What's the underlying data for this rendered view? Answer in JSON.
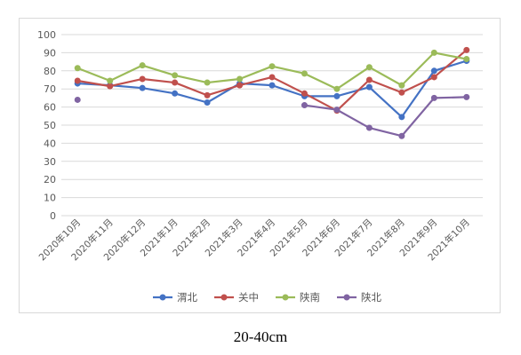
{
  "caption": "20-40cm",
  "chart_data": {
    "type": "line",
    "title": "",
    "xlabel": "",
    "ylabel": "",
    "ylim": [
      0,
      100
    ],
    "yticks": [
      0,
      10,
      20,
      30,
      40,
      50,
      60,
      70,
      80,
      90,
      100
    ],
    "grid": true,
    "legend_position": "bottom",
    "categories": [
      "2020年10月",
      "2020年11月",
      "2020年12月",
      "2021年1月",
      "2021年2月",
      "2021年3月",
      "2021年4月",
      "2021年5月",
      "2021年6月",
      "2021年7月",
      "2021年8月",
      "2021年9月",
      "2021年10月"
    ],
    "series": [
      {
        "name": "渭北",
        "color": "#4472c4",
        "values": [
          73,
          72,
          70.5,
          67.5,
          62.5,
          73,
          72,
          66,
          66,
          71,
          54.5,
          80,
          85.5
        ]
      },
      {
        "name": "关中",
        "color": "#c0504d",
        "values": [
          74.5,
          71.5,
          75.5,
          73.5,
          66.5,
          72,
          76.5,
          67.5,
          58,
          75,
          68,
          76.5,
          91.5
        ]
      },
      {
        "name": "陕南",
        "color": "#9bbb59",
        "values": [
          81.5,
          74.5,
          83,
          77.5,
          73.5,
          75.5,
          82.5,
          78.5,
          70,
          82,
          72,
          90,
          86.5
        ]
      },
      {
        "name": "陕北",
        "color": "#8064a2",
        "values": [
          64,
          null,
          null,
          null,
          null,
          null,
          null,
          61,
          58.5,
          48.5,
          44,
          65,
          65.5
        ]
      }
    ]
  }
}
